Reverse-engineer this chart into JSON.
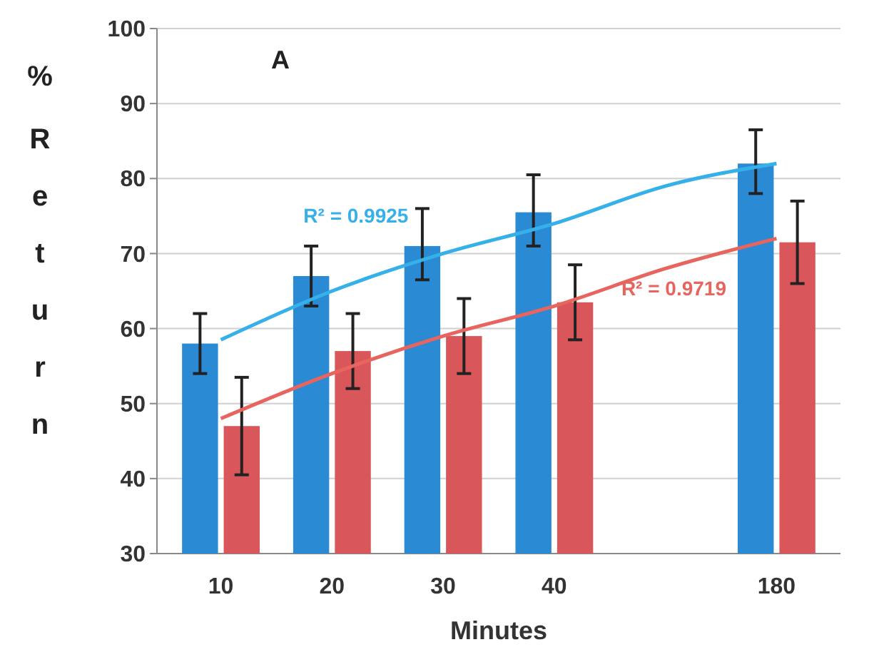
{
  "chart_data": {
    "type": "bar",
    "xlabel": "Minutes",
    "ylabel": "% Return",
    "categories": [
      "10",
      "20",
      "30",
      "40",
      null,
      "180"
    ],
    "series": [
      {
        "color": "#2a8ad4",
        "values": [
          58,
          67,
          71,
          75.5,
          null,
          82
        ],
        "errors": [
          [
            54,
            62
          ],
          [
            63,
            71
          ],
          [
            66.5,
            76
          ],
          [
            71,
            80.5
          ],
          null,
          [
            78,
            86.5
          ]
        ]
      },
      {
        "color": "#d9575a",
        "values": [
          47,
          57,
          59,
          63.5,
          null,
          71.5
        ],
        "errors": [
          [
            40.5,
            53.5
          ],
          [
            52,
            62
          ],
          [
            54,
            64
          ],
          [
            58.5,
            68.5
          ],
          null,
          [
            66,
            77
          ]
        ]
      },
      {
        "type": "line",
        "color": "#35b0e8",
        "values": [
          58.5,
          65,
          70,
          74,
          79,
          82
        ]
      },
      {
        "type": "line",
        "color": "#e8645e",
        "values": [
          48,
          54,
          59,
          63,
          68,
          72
        ]
      }
    ],
    "ylim": [
      30,
      100
    ],
    "yticks": [
      30,
      40,
      50,
      60,
      70,
      80,
      90,
      100
    ],
    "grid": "y",
    "annotations": [
      "A",
      "R² = 0.9925",
      "R² = 0.9719"
    ]
  }
}
